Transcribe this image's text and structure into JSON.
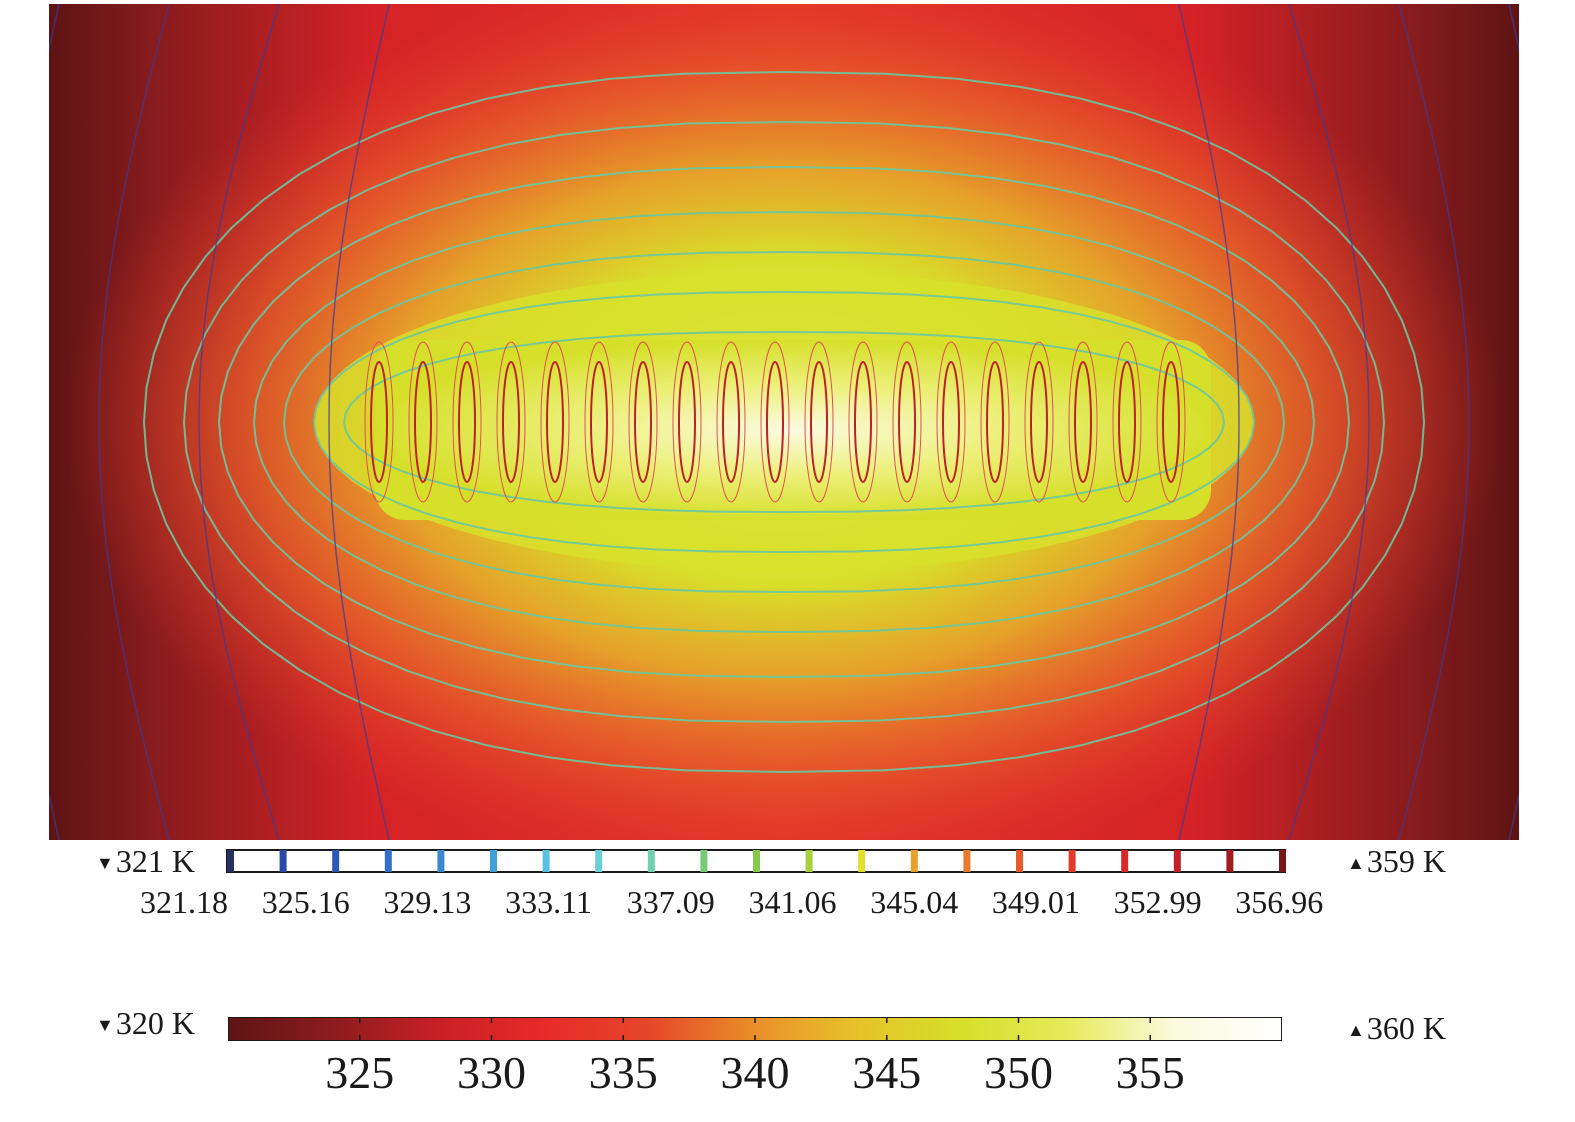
{
  "chart_data": {
    "type": "heatmap",
    "title": "",
    "quantity_unit": "K",
    "colormap": [
      "#5e1414",
      "#8c1c1e",
      "#c82026",
      "#e82a2a",
      "#e5472a",
      "#ea8f2a",
      "#e6c42a",
      "#d6e02a",
      "#e7eb5e",
      "#fbfbe0",
      "#ffffff"
    ],
    "surface": {
      "min_label": "320 K",
      "max_label": "360 K",
      "range": [
        320,
        360
      ],
      "ticks": [
        325,
        330,
        335,
        340,
        345,
        350,
        355
      ],
      "grid": false
    },
    "contours": {
      "min_label": "321 K",
      "max_label": "359 K",
      "range": [
        321,
        359
      ],
      "level_labels": [
        "321.18",
        "325.16",
        "329.13",
        "333.11",
        "337.09",
        "341.06",
        "345.04",
        "349.01",
        "352.99",
        "356.96"
      ],
      "level_colors": [
        "#283060",
        "#2a48a8",
        "#2b58b8",
        "#3070c8",
        "#3a88d0",
        "#40a0d8",
        "#58c0e0",
        "#6ad0d8",
        "#70d0b0",
        "#78c878",
        "#86c84a",
        "#a8d03a",
        "#e0e02a",
        "#e8a02a",
        "#e87a2a",
        "#e85a2a",
        "#e03a2a",
        "#d8282a",
        "#c02028",
        "#a01c20",
        "#7a1818"
      ]
    },
    "description_hidden": ""
  },
  "icons": {
    "min_marker": "down-triangle-icon",
    "max_marker": "up-triangle-icon"
  },
  "glyphs": {
    "down": "▼",
    "up": "▲"
  }
}
